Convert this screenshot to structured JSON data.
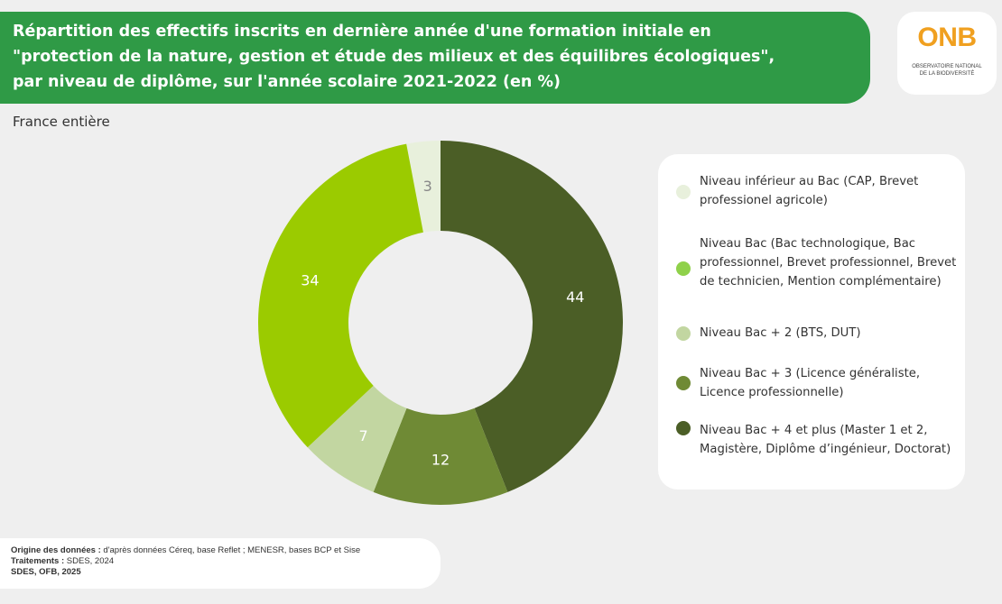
{
  "header": {
    "title": "Répartition des effectifs inscrits en dernière année d'une formation initiale en\n\"protection de la nature, gestion et étude des milieux et des équilibres écologiques\",\npar niveau de diplôme, sur l'année scolaire 2021-2022 (en %)",
    "accent": "#2f9a46"
  },
  "logo": {
    "mark": "ONB",
    "line1": "OBSERVATOIRE NATIONAL",
    "line2": "DE LA BIODIVERSITÉ"
  },
  "subtitle": "France entière",
  "chart_data": {
    "type": "donut",
    "unit": "%",
    "segments": [
      {
        "label": "Niveau inférieur au Bac (CAP, Brevet professionel agricole)",
        "value": 3,
        "color": "#e8f0dc",
        "label_color": "#888888"
      },
      {
        "label": "Niveau Bac + 4 et plus (Master 1 et 2, Magistère, Diplôme d’ingénieur, Doctorat)",
        "value": 44,
        "color": "#4b5e26",
        "label_color": "#ffffff"
      },
      {
        "label": "Niveau Bac + 3 (Licence généraliste, Licence professionnelle)",
        "value": 12,
        "color": "#6f8a35",
        "label_color": "#ffffff"
      },
      {
        "label": "Niveau Bac + 2 (BTS, DUT)",
        "value": 7,
        "color": "#c2d6a1",
        "label_color": "#ffffff"
      },
      {
        "label": "Niveau Bac (Bac technologique, Bac professionnel, Brevet professionnel, Brevet de technicien, Mention complémentaire)",
        "value": 34,
        "color": "#9bcb00",
        "label_color": "#ffffff"
      }
    ]
  },
  "legend": {
    "items": [
      {
        "label": "Niveau inférieur au Bac (CAP, Brevet professionel agricole)",
        "color": "#e8f0dc"
      },
      {
        "label": "Niveau Bac (Bac technologique, Bac professionnel, Brevet professionnel, Brevet de technicien, Mention complémentaire)",
        "color": "#8fd14a"
      },
      {
        "label": "Niveau Bac + 2 (BTS, DUT)",
        "color": "#c2d6a1"
      },
      {
        "label": "Niveau Bac + 3 (Licence généraliste, Licence professionnelle)",
        "color": "#6f8a35"
      },
      {
        "label": "Niveau Bac + 4 et plus (Master 1 et 2, Magistère, Diplôme d’ingénieur, Doctorat)",
        "color": "#4b5e26"
      }
    ]
  },
  "source": {
    "origin_label": "Origine des données :",
    "origin_text": " d'après données Céreq, base Reflet ; MENESR, bases BCP et Sise",
    "processing_label": "Traitements :",
    "processing_text": " SDES, 2024",
    "credit": "SDES, OFB, 2025"
  }
}
